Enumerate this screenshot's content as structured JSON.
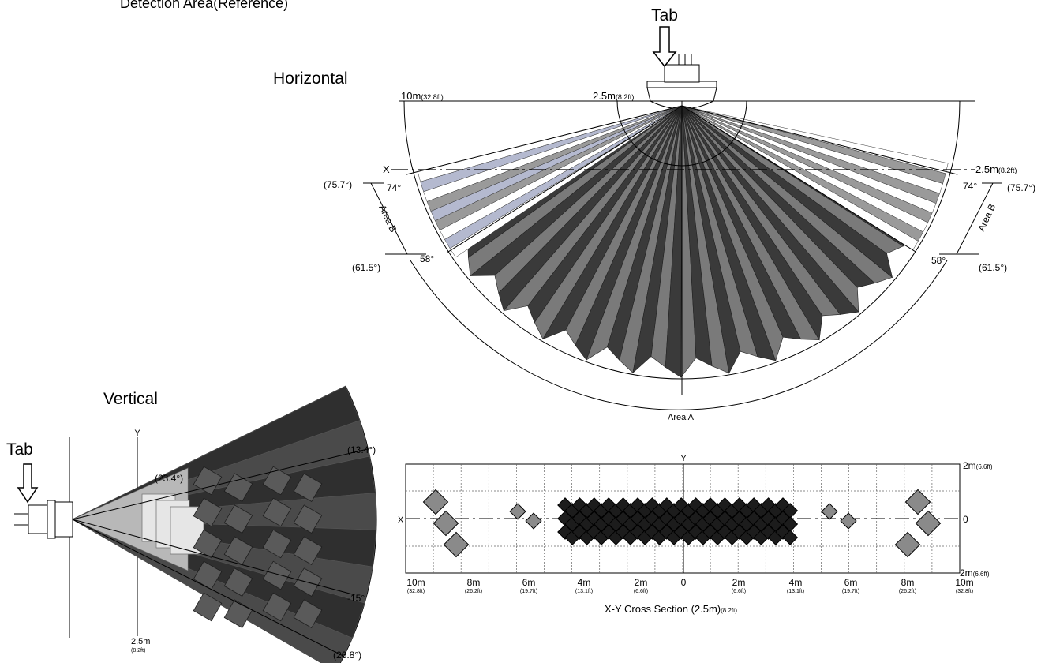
{
  "title": "Detection Area(Reference)",
  "tab_label": "Tab",
  "horizontal": {
    "heading": "Horizontal",
    "range_outer": "10m",
    "range_outer_ft": "(32.8ft)",
    "range_inner": "2.5m",
    "range_inner_ft": "(8.2ft)",
    "range_right": "2.5m",
    "range_right_ft": "(8.2ft)",
    "x_label": "X",
    "angle_74": "74°",
    "angle_75_7": "(75.7°)",
    "angle_58": "58°",
    "angle_61_5": "(61.5°)",
    "area_a": "Area A",
    "area_b": "Area B"
  },
  "vertical": {
    "heading": "Vertical",
    "y_label": "Y",
    "angle_13_4": "(13.4°)",
    "angle_23_4": "(23.4°)",
    "angle_neg15": "-15°",
    "angle_26_8": "(26.8°)",
    "distance": "2.5m",
    "distance_ft": "(8.2ft)"
  },
  "cross_section": {
    "caption": "X-Y Cross Section (2.5m)",
    "caption_ft": "(8.2ft)",
    "x_label": "X",
    "y_label": "Y",
    "y_top": "2m",
    "y_top_ft": "(6.6ft)",
    "y_mid": "0",
    "y_bottom": "2m",
    "y_bottom_ft": "(6.6ft)",
    "x_ticks": [
      {
        "m": "10m",
        "ft": "(32.8ft)"
      },
      {
        "m": "8m",
        "ft": "(26.2ft)"
      },
      {
        "m": "6m",
        "ft": "(19.7ft)"
      },
      {
        "m": "4m",
        "ft": "(13.1ft)"
      },
      {
        "m": "2m",
        "ft": "(6.6ft)"
      },
      {
        "m": "0",
        "ft": ""
      },
      {
        "m": "2m",
        "ft": "(6.6ft)"
      },
      {
        "m": "4m",
        "ft": "(13.1ft)"
      },
      {
        "m": "6m",
        "ft": "(19.7ft)"
      },
      {
        "m": "8m",
        "ft": "(26.2ft)"
      },
      {
        "m": "10m",
        "ft": "(32.8ft)"
      }
    ]
  },
  "colors": {
    "dark_beam": "#3a3a3a",
    "mid_beam": "#7a7a7a",
    "light_beam": "#b4b9cf",
    "line": "#000000"
  }
}
